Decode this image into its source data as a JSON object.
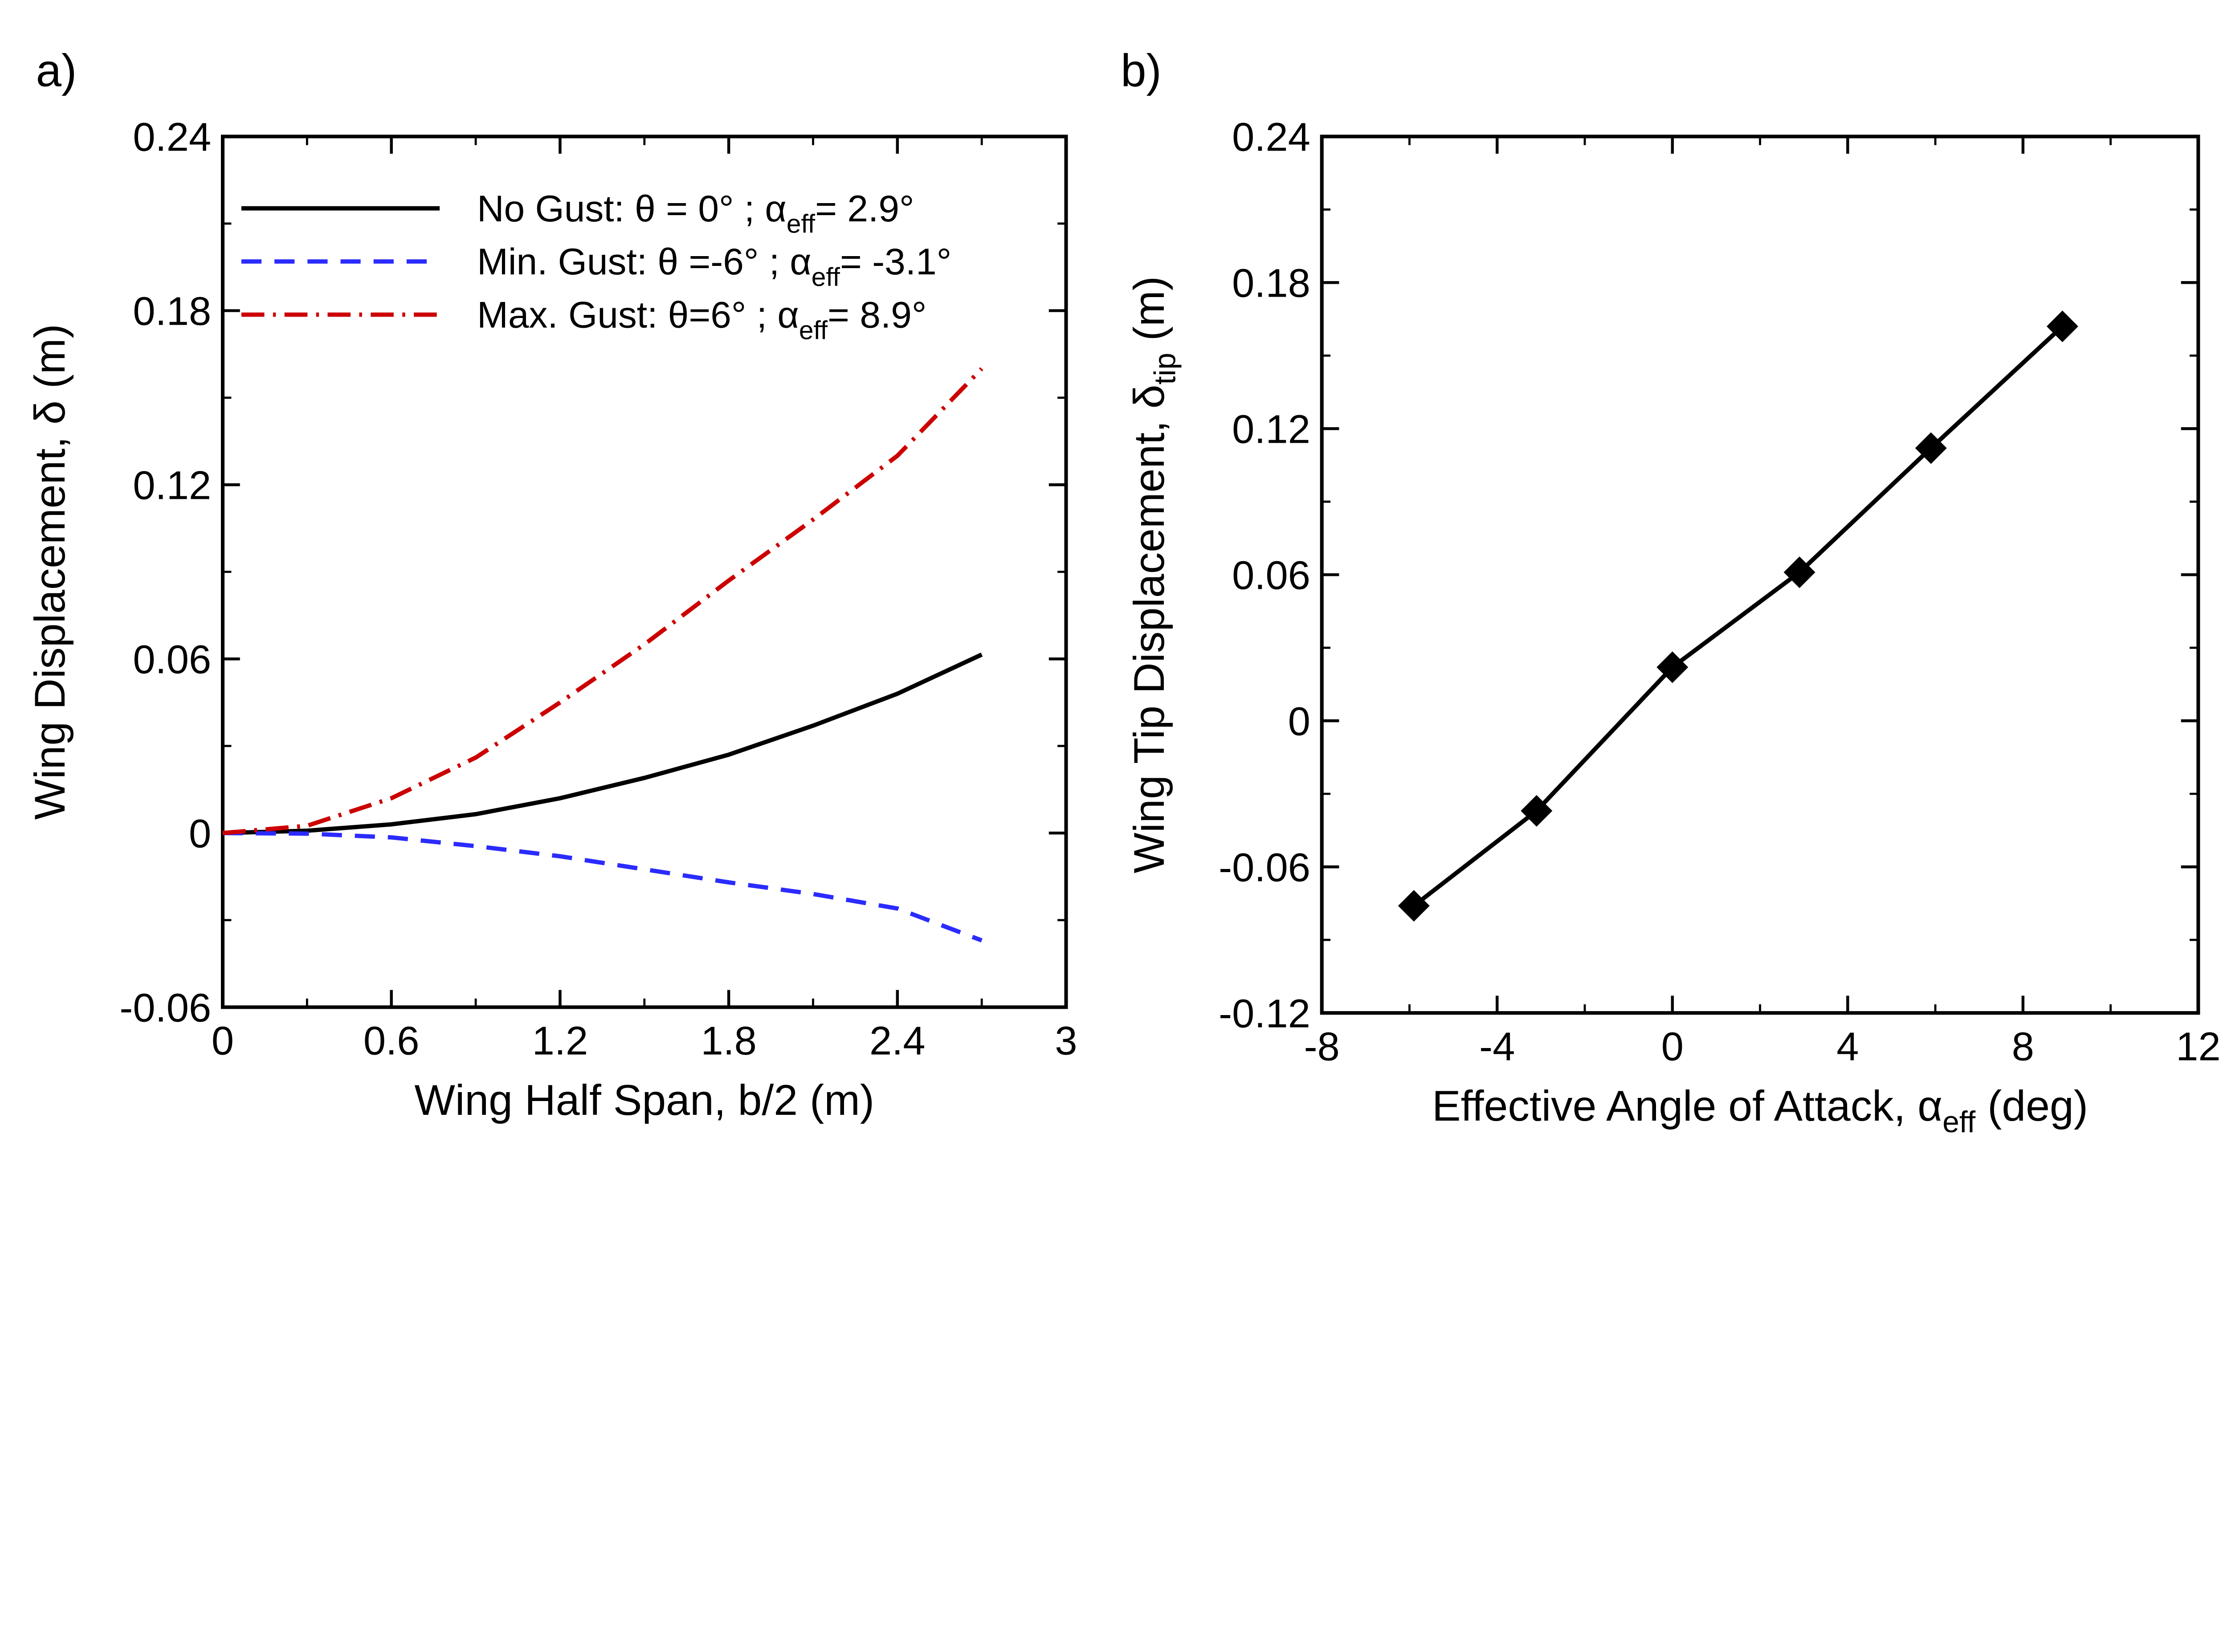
{
  "chart_data": [
    {
      "panel_label": "a)",
      "type": "line",
      "xlabel": "Wing Half Span, b/2 (m)",
      "ylabel": "Wing Displacement, δ (m)",
      "xlim": [
        0,
        3
      ],
      "ylim": [
        -0.06,
        0.24
      ],
      "xticks": [
        "0",
        "0.6",
        "1.2",
        "1.8",
        "2.4",
        "3"
      ],
      "yticks": [
        "-0.06",
        "0",
        "0.06",
        "0.12",
        "0.18",
        "0.24"
      ],
      "grid": false,
      "legend_position": "top-left",
      "x": [
        0,
        0.3,
        0.6,
        0.9,
        1.2,
        1.5,
        1.8,
        2.1,
        2.4,
        2.7
      ],
      "series": [
        {
          "name": "No Gust",
          "legend_main": "No Gust: θ = 0°  ; α",
          "legend_sub": "eff",
          "legend_tail": "= 2.9°",
          "color": "#000000",
          "dash": "solid",
          "values": [
            0,
            0.0008,
            0.003,
            0.0065,
            0.012,
            0.019,
            0.027,
            0.037,
            0.048,
            0.0615
          ]
        },
        {
          "name": "Min. Gust",
          "legend_main": "Min. Gust: θ =-6°  ; α",
          "legend_sub": "eff",
          "legend_tail": "= -3.1°",
          "color": "#2b2bff",
          "dash": "dashed",
          "values": [
            0,
            -0.0002,
            -0.0015,
            -0.0045,
            -0.008,
            -0.0125,
            -0.017,
            -0.021,
            -0.026,
            -0.037
          ]
        },
        {
          "name": "Max. Gust",
          "legend_main": "Max. Gust: θ=6°  ; α",
          "legend_sub": "eff",
          "legend_tail": "= 8.9°",
          "color": "#cc0000",
          "dash": "dashdot",
          "values": [
            0,
            0.0025,
            0.012,
            0.026,
            0.045,
            0.065,
            0.087,
            0.108,
            0.13,
            0.16
          ]
        }
      ]
    },
    {
      "panel_label": "b)",
      "type": "line",
      "xlabel": "Effective Angle of Attack, α",
      "xlabel_sub": "eff",
      "xlabel_tail": " (deg)",
      "ylabel": "Wing Tip Displacement, δ",
      "ylabel_sub": "tip",
      "ylabel_tail": " (m)",
      "xlim": [
        -8,
        12
      ],
      "ylim": [
        -0.12,
        0.24
      ],
      "xticks": [
        "-8",
        "-4",
        "0",
        "4",
        "8",
        "12"
      ],
      "yticks": [
        "-0.12",
        "-0.06",
        "0",
        "0.06",
        "0.12",
        "0.18",
        "0.24"
      ],
      "grid": false,
      "marker": "diamond",
      "series": [
        {
          "name": "Tip displacement",
          "color": "#000000",
          "x": [
            -5.9,
            -3.1,
            0,
            2.9,
            5.9,
            8.9
          ],
          "values": [
            -0.076,
            -0.037,
            0.022,
            0.061,
            0.112,
            0.162
          ]
        }
      ]
    }
  ]
}
